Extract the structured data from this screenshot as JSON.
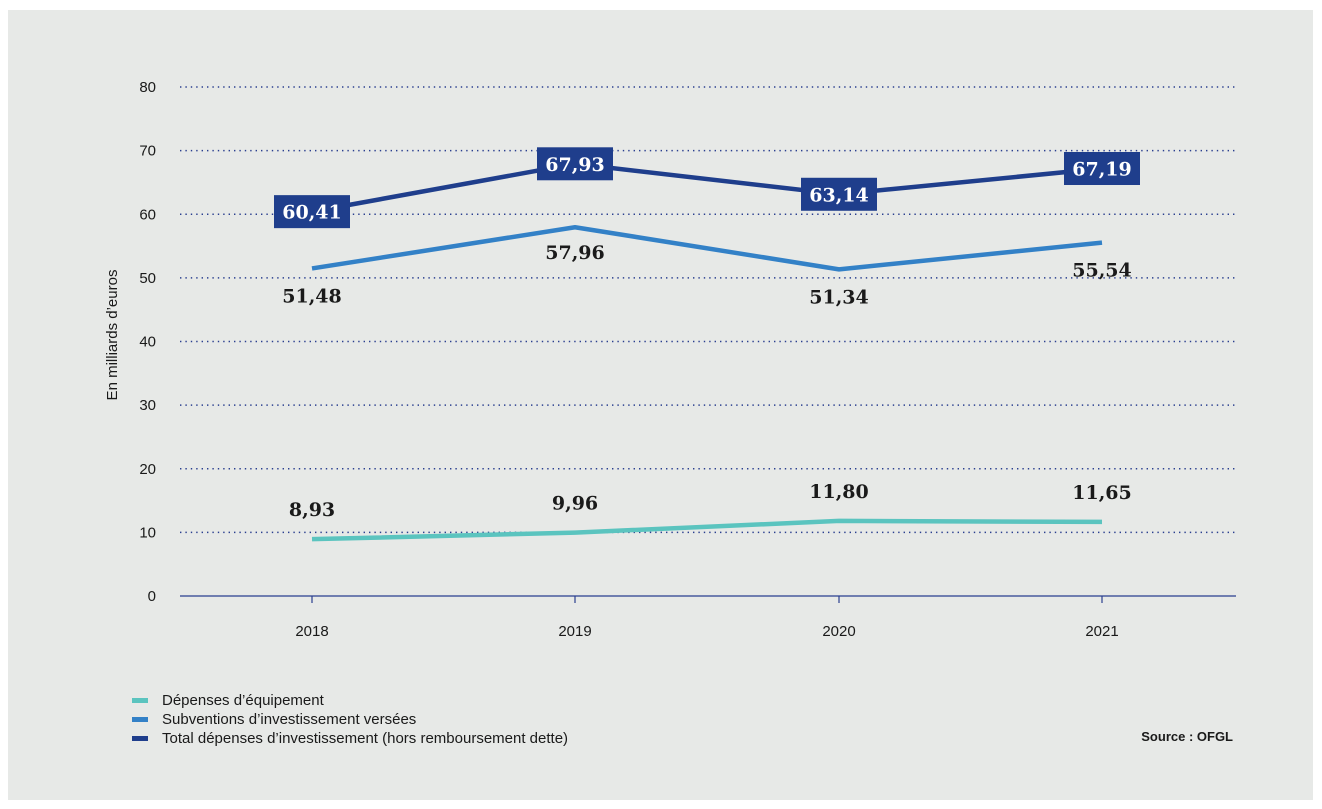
{
  "chart_data": {
    "type": "line",
    "categories": [
      "2018",
      "2019",
      "2020",
      "2021"
    ],
    "series": [
      {
        "name": "Dépenses d’équipement",
        "values": [
          8.93,
          9.96,
          11.8,
          11.65
        ],
        "color": "#5bc4bf",
        "labels": [
          "8,93",
          "9,96",
          "11,80",
          "11,65"
        ],
        "label_style": "above"
      },
      {
        "name": "Subventions d’investissement versées",
        "values": [
          51.48,
          57.96,
          51.34,
          55.54
        ],
        "color": "#3381c7",
        "labels": [
          "51,48",
          "57,96",
          "51,34",
          "55,54"
        ],
        "label_style": "below"
      },
      {
        "name": "Total dépenses d’investissement (hors remboursement dette)",
        "values": [
          60.41,
          67.93,
          63.14,
          67.19
        ],
        "color": "#1f3e8c",
        "labels": [
          "60,41",
          "67,93",
          "63,14",
          "67,19"
        ],
        "label_style": "box"
      }
    ],
    "ylabel": "En milliards d’euros",
    "xlabel": "",
    "ylim": [
      0,
      80
    ],
    "yticks": [
      "0",
      "10",
      "20",
      "30",
      "40",
      "50",
      "60",
      "70",
      "80"
    ],
    "grid": "dotted horizontal",
    "legend_position": "bottom-left"
  },
  "source": "Source : OFGL"
}
